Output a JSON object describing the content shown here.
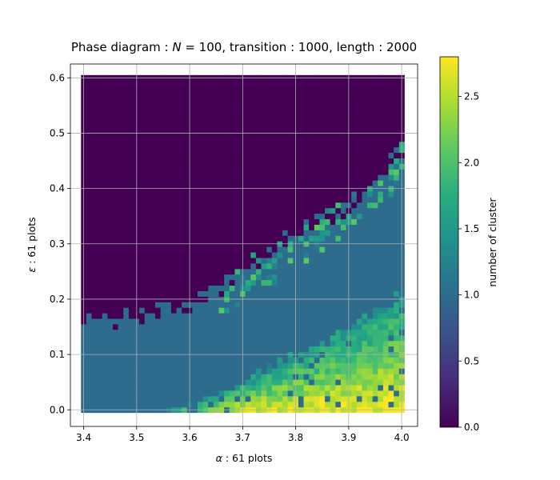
{
  "chart_data": {
    "type": "heatmap",
    "title_parts": [
      "Phase diagram : ",
      "N",
      " = 100, transition : 1000, length : 2000"
    ],
    "xlabel_parts": [
      "α",
      " : 61 plots"
    ],
    "ylabel_parts": [
      "ε",
      " : 61 plots"
    ],
    "colorbar_label": "number of cluster",
    "x_range": [
      3.4,
      4.0
    ],
    "y_range": [
      0.0,
      0.6
    ],
    "x_steps": 61,
    "y_steps": 61,
    "xlim": [
      3.375,
      4.03
    ],
    "ylim": [
      -0.03,
      0.625
    ],
    "clim": [
      0.0,
      2.8
    ],
    "xticks": [
      {
        "value": 3.4,
        "label": "3.4"
      },
      {
        "value": 3.5,
        "label": "3.5"
      },
      {
        "value": 3.6,
        "label": "3.6"
      },
      {
        "value": 3.7,
        "label": "3.7"
      },
      {
        "value": 3.8,
        "label": "3.8"
      },
      {
        "value": 3.9,
        "label": "3.9"
      },
      {
        "value": 4.0,
        "label": "4.0"
      }
    ],
    "yticks": [
      {
        "value": 0.0,
        "label": "0.0"
      },
      {
        "value": 0.1,
        "label": "0.1"
      },
      {
        "value": 0.2,
        "label": "0.2"
      },
      {
        "value": 0.3,
        "label": "0.3"
      },
      {
        "value": 0.4,
        "label": "0.4"
      },
      {
        "value": 0.5,
        "label": "0.5"
      },
      {
        "value": 0.6,
        "label": "0.6"
      }
    ],
    "colorbar_ticks": [
      {
        "value": 0.0,
        "label": "0.0"
      },
      {
        "value": 0.5,
        "label": "0.5"
      },
      {
        "value": 1.0,
        "label": "1.0"
      },
      {
        "value": 1.5,
        "label": "1.5"
      },
      {
        "value": 2.0,
        "label": "2.0"
      },
      {
        "value": 2.5,
        "label": "2.5"
      }
    ],
    "colormap": "viridis",
    "grid": true,
    "regions_description": {
      "upper_boundary_eps_vs_alpha": [
        [
          3.4,
          0.16
        ],
        [
          3.5,
          0.17
        ],
        [
          3.6,
          0.19
        ],
        [
          3.7,
          0.25
        ],
        [
          3.8,
          0.32
        ],
        [
          3.9,
          0.37
        ],
        [
          4.0,
          0.47
        ]
      ],
      "lower_boundary_eps_vs_alpha": [
        [
          3.5,
          -0.01
        ],
        [
          3.6,
          0.005
        ],
        [
          3.7,
          0.05
        ],
        [
          3.8,
          0.1
        ],
        [
          3.9,
          0.15
        ],
        [
          4.0,
          0.21
        ]
      ],
      "value_upper": 0.0,
      "value_middle": 1.0,
      "value_lower_peak": 2.8
    }
  }
}
